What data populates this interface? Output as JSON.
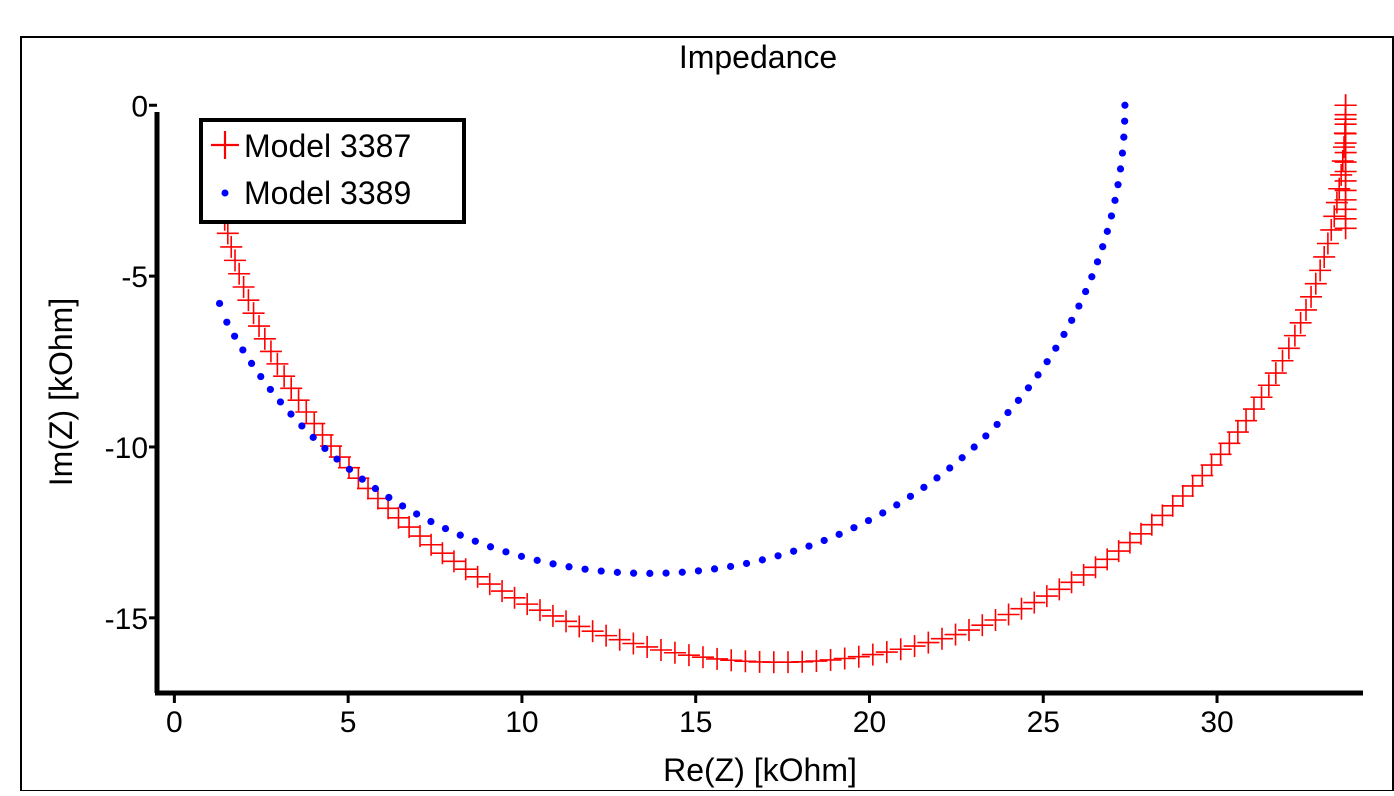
{
  "chart_data": {
    "type": "scatter",
    "title": "Impedance",
    "xlabel": "Re(Z) [kOhm]",
    "ylabel": "Im(Z) [kOhm]",
    "xlim": [
      -0.5,
      34.2
    ],
    "ylim": [
      -17.2,
      0.3
    ],
    "xticks": [
      0,
      5,
      10,
      15,
      20,
      25,
      30
    ],
    "yticks": [
      0,
      -5,
      -10,
      -15
    ],
    "xtick_labels": [
      "0",
      "5",
      "10",
      "15",
      "20",
      "25",
      "30"
    ],
    "ytick_labels": [
      "0",
      "-5",
      "-10",
      "-15"
    ],
    "grid": false,
    "legend_position": "top-left",
    "series": [
      {
        "name": "Model 3387",
        "marker": "plus",
        "color": "#ff0000",
        "center_re": 17.4,
        "radius": 16.3,
        "re_start": 1.3,
        "re_end": 33.7,
        "im_start": -7.0,
        "im_end": 0.0,
        "num_points": 120
      },
      {
        "name": "Model 3389",
        "marker": "dot",
        "color": "#0000ff",
        "center_re": 13.65,
        "radius": 13.7,
        "re_start": 1.3,
        "re_end": 27.35,
        "im_start": -5.8,
        "im_end": 0.0,
        "num_points": 80
      }
    ]
  }
}
